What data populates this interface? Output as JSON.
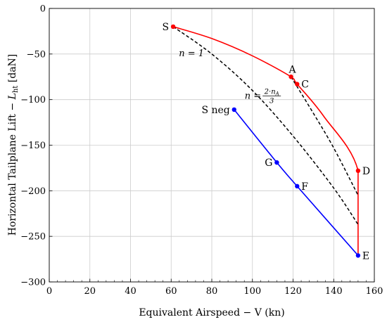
{
  "chart_data": {
    "type": "line",
    "xlabel": "Equivalent Airspeed − V (kn)",
    "ylabel_main": "Horizontal Tailplane Lift − ",
    "ylabel_symbol": "L",
    "ylabel_subscript": "ht",
    "ylabel_unit": " [daN]",
    "xlim": [
      0,
      160
    ],
    "ylim": [
      -300,
      0
    ],
    "xticks": [
      0,
      20,
      40,
      60,
      80,
      100,
      120,
      140,
      160
    ],
    "yticks": [
      0,
      -50,
      -100,
      -150,
      -200,
      -250,
      -300
    ],
    "grid": true,
    "colors": {
      "positive": "#ff0000",
      "negative": "#0000ff",
      "load_lines": "#000000"
    },
    "series": [
      {
        "key": "positive",
        "style": "solid",
        "points": [
          [
            61,
            -20
          ],
          [
            80,
            -33
          ],
          [
            100,
            -52
          ],
          [
            119,
            -75
          ],
          [
            122,
            -83
          ],
          [
            135,
            -118
          ],
          [
            152,
            -178
          ],
          [
            152,
            -271
          ]
        ]
      },
      {
        "key": "negative",
        "style": "solid",
        "points": [
          [
            91,
            -111
          ],
          [
            112,
            -169
          ],
          [
            122,
            -195
          ],
          [
            152,
            -271
          ]
        ]
      },
      {
        "key": "n1",
        "style": "dashed",
        "points": [
          [
            61,
            -20
          ],
          [
            80,
            -50
          ],
          [
            100,
            -90
          ],
          [
            120,
            -140
          ],
          [
            140,
            -197
          ],
          [
            152,
            -237
          ]
        ]
      },
      {
        "key": "n2",
        "style": "dashed",
        "points": [
          [
            119,
            -75
          ],
          [
            130,
            -115
          ],
          [
            140,
            -153
          ],
          [
            152,
            -205
          ]
        ]
      }
    ],
    "points": [
      {
        "name": "S",
        "x": 61,
        "y": -20,
        "color": "#ff0000",
        "label_pos": "left"
      },
      {
        "name": "A",
        "x": 119,
        "y": -75,
        "color": "#ff0000",
        "label_pos": "above"
      },
      {
        "name": "C",
        "x": 122,
        "y": -83,
        "color": "#ff0000",
        "label_pos": "right"
      },
      {
        "name": "D",
        "x": 152,
        "y": -178,
        "color": "#ff0000",
        "label_pos": "right"
      },
      {
        "name": "S neg",
        "x": 91,
        "y": -111,
        "color": "#0000ff",
        "label_pos": "left"
      },
      {
        "name": "G",
        "x": 112,
        "y": -169,
        "color": "#0000ff",
        "label_pos": "left"
      },
      {
        "name": "F",
        "x": 122,
        "y": -195,
        "color": "#0000ff",
        "label_pos": "right"
      },
      {
        "name": "E",
        "x": 152,
        "y": -271,
        "color": "#0000ff",
        "label_pos": "right"
      }
    ],
    "annotations": [
      {
        "text": "n = 1",
        "x": 70,
        "y": -50
      },
      {
        "text_prefix": "n = ",
        "numerator": "2·n",
        "numerator_sub": "A",
        "denominator": "3",
        "x": 105,
        "y": -96
      }
    ]
  }
}
